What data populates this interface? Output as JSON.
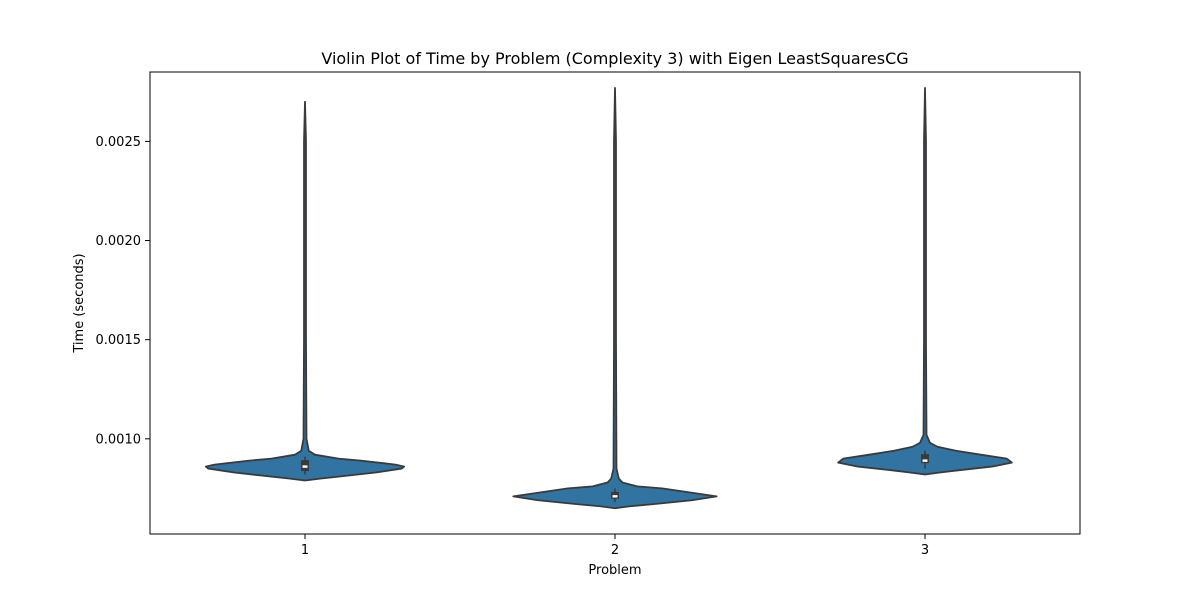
{
  "chart_data": {
    "type": "violin",
    "title": "Violin Plot of Time by Problem (Complexity 3) with Eigen LeastSquaresCG",
    "xlabel": "Problem",
    "ylabel": "Time (seconds)",
    "categories": [
      "1",
      "2",
      "3"
    ],
    "ylim": [
      0.00052,
      0.00285
    ],
    "yticks": [
      0.001,
      0.0015,
      0.002,
      0.0025
    ],
    "ytick_labels": [
      "0.0010",
      "0.0015",
      "0.0020",
      "0.0025"
    ],
    "grid": false,
    "color": "#3274a1",
    "edge_color": "#3a3a3a",
    "violins": [
      {
        "category": "1",
        "min": 0.00079,
        "max": 0.0027,
        "q1": 0.00084,
        "median": 0.00086,
        "q3": 0.00089,
        "whisker_low": 0.00082,
        "whisker_high": 0.00091,
        "profile": [
          [
            0.00079,
            0.0
          ],
          [
            0.0008,
            0.13
          ],
          [
            0.00081,
            0.28
          ],
          [
            0.00083,
            0.57
          ],
          [
            0.00085,
            0.78
          ],
          [
            0.00086,
            0.8
          ],
          [
            0.00087,
            0.73
          ],
          [
            0.00089,
            0.45
          ],
          [
            0.0009,
            0.27
          ],
          [
            0.00092,
            0.08
          ],
          [
            0.00094,
            0.03
          ],
          [
            0.001,
            0.012
          ],
          [
            0.0015,
            0.008
          ],
          [
            0.002,
            0.008
          ],
          [
            0.0025,
            0.008
          ],
          [
            0.0027,
            0.0
          ]
        ]
      },
      {
        "category": "2",
        "min": 0.00065,
        "max": 0.00277,
        "q1": 0.0007,
        "median": 0.00071,
        "q3": 0.00073,
        "whisker_low": 0.00068,
        "whisker_high": 0.00075,
        "profile": [
          [
            0.00065,
            0.0
          ],
          [
            0.00066,
            0.12
          ],
          [
            0.00067,
            0.3
          ],
          [
            0.00069,
            0.62
          ],
          [
            0.00071,
            0.82
          ],
          [
            0.00073,
            0.6
          ],
          [
            0.00075,
            0.38
          ],
          [
            0.00076,
            0.18
          ],
          [
            0.00078,
            0.06
          ],
          [
            0.0008,
            0.03
          ],
          [
            0.00085,
            0.012
          ],
          [
            0.0015,
            0.008
          ],
          [
            0.002,
            0.008
          ],
          [
            0.0025,
            0.008
          ],
          [
            0.00277,
            0.0
          ]
        ]
      },
      {
        "category": "3",
        "min": 0.00082,
        "max": 0.00277,
        "q1": 0.00088,
        "median": 0.00089,
        "q3": 0.00092,
        "whisker_low": 0.00085,
        "whisker_high": 0.00094,
        "profile": [
          [
            0.00082,
            0.0
          ],
          [
            0.00083,
            0.12
          ],
          [
            0.00084,
            0.25
          ],
          [
            0.00086,
            0.54
          ],
          [
            0.00088,
            0.7
          ],
          [
            0.0009,
            0.66
          ],
          [
            0.00092,
            0.45
          ],
          [
            0.00094,
            0.25
          ],
          [
            0.00096,
            0.1
          ],
          [
            0.00098,
            0.04
          ],
          [
            0.00102,
            0.012
          ],
          [
            0.0015,
            0.008
          ],
          [
            0.002,
            0.008
          ],
          [
            0.0025,
            0.008
          ],
          [
            0.00277,
            0.0
          ]
        ]
      }
    ]
  }
}
